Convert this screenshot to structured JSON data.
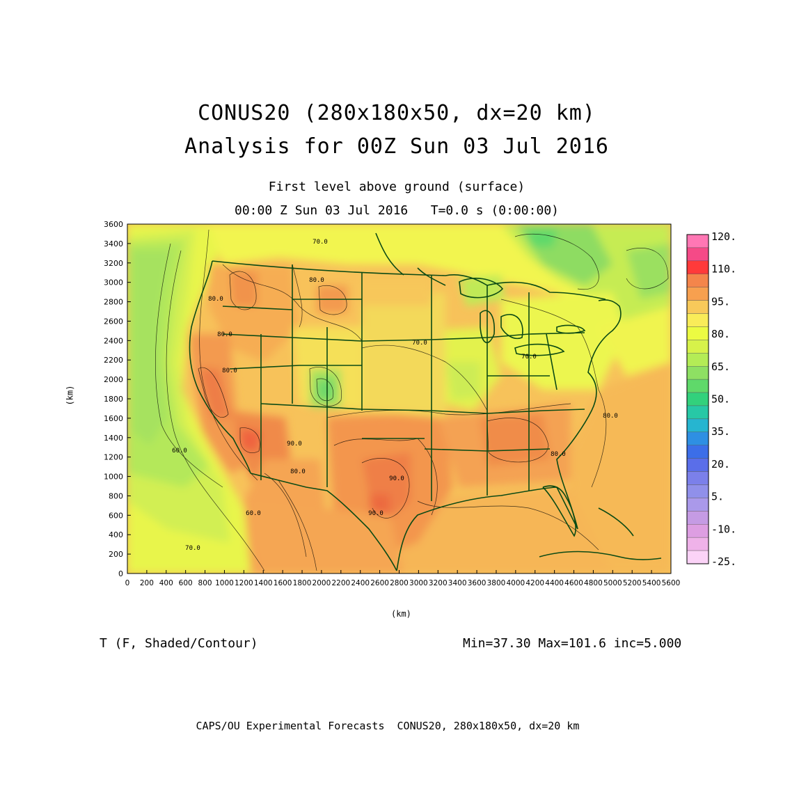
{
  "title": {
    "line1": "CONUS20 (280x180x50, dx=20 km)",
    "line2": "Analysis for 00Z Sun 03 Jul 2016"
  },
  "subtitle": {
    "line1": "First level above ground (surface)",
    "line2": "00:00 Z Sun 03 Jul 2016   T=0.0 s (0:00:00)"
  },
  "axes": {
    "x_unit": "(km)",
    "y_unit": "(km)",
    "x_ticks": [
      "0",
      "200",
      "400",
      "600",
      "800",
      "1000",
      "1200",
      "1400",
      "1600",
      "1800",
      "2000",
      "2200",
      "2400",
      "2600",
      "2800",
      "3000",
      "3200",
      "3400",
      "3600",
      "3800",
      "4000",
      "4200",
      "4400",
      "4600",
      "4800",
      "5000",
      "5200",
      "5400",
      "5600"
    ],
    "y_ticks": [
      "0",
      "200",
      "400",
      "600",
      "800",
      "1000",
      "1200",
      "1400",
      "1600",
      "1800",
      "2000",
      "2200",
      "2400",
      "2600",
      "2800",
      "3000",
      "3200",
      "3400",
      "3600"
    ],
    "x_range": [
      0,
      5600
    ],
    "y_range": [
      0,
      3600
    ]
  },
  "colorbar": {
    "labels": [
      "120.",
      "110.",
      "95.",
      "80.",
      "65.",
      "50.",
      "35.",
      "20.",
      "5.",
      "-10.",
      "-25."
    ],
    "colors": [
      "#ff77b4",
      "#f54a87",
      "#ff3a3a",
      "#f4854b",
      "#f7a04f",
      "#f8c95a",
      "#f9ec59",
      "#ecfb42",
      "#d7f24a",
      "#b4ec56",
      "#8ee063",
      "#5fd96a",
      "#32d17c",
      "#27c8a6",
      "#26b5d0",
      "#2e8fe3",
      "#3c6ee8",
      "#5a6ee9",
      "#7b80ea",
      "#9090ea",
      "#aa99ea",
      "#c59be4",
      "#dd9ee2",
      "#efb2e9",
      "#fbd3f7"
    ]
  },
  "contour_labels": [
    "70.0",
    "80.0",
    "80.0",
    "80.0",
    "80.0",
    "70.0",
    "70.0",
    "90.0",
    "90.0",
    "90.0",
    "60.0",
    "80.0",
    "80.0",
    "70.0",
    "60.0",
    "80.0"
  ],
  "variable_label": "T (F, Shaded/Contour)",
  "stats": "Min=37.30 Max=101.6 inc=5.000",
  "footer": "CAPS/OU Experimental Forecasts  CONUS20, 280x180x50, dx=20 km"
}
